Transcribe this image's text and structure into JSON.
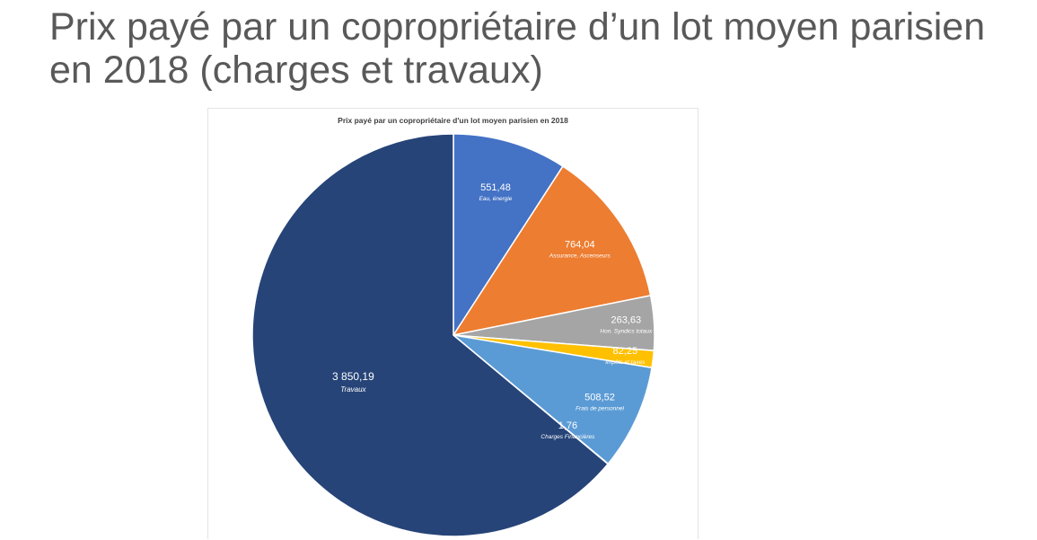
{
  "slide": {
    "title": "Prix payé par un copropriétaire d’un lot moyen parisien en 2018 (charges et travaux)"
  },
  "chart_data": {
    "type": "pie",
    "title": "Prix payé par un copropriétaire d'un lot moyen parisien en 2018",
    "start_angle_deg": 0,
    "direction": "clockwise",
    "slices": [
      {
        "name": "Eau, énergie",
        "value": 551.48,
        "value_label": "551,48",
        "color": "#4472C4"
      },
      {
        "name": "Assurance, Ascenseurs",
        "value": 764.04,
        "value_label": "764,04",
        "color": "#ED7D31"
      },
      {
        "name": "Hon. Syndics totaux",
        "value": 263.63,
        "value_label": "263,63",
        "color": "#A5A5A5"
      },
      {
        "name": "Impôts et taxes",
        "value": 82.25,
        "value_label": "82,25",
        "color": "#FFC000"
      },
      {
        "name": "Frais de personnel",
        "value": 508.52,
        "value_label": "508,52",
        "color": "#5B9BD5"
      },
      {
        "name": "Charges Financières",
        "value": 1.76,
        "value_label": "1,76",
        "color": "#70AD47"
      },
      {
        "name": "Travaux",
        "value": 3850.19,
        "value_label": "3 850,19",
        "color": "#264478"
      }
    ],
    "legend": "none"
  }
}
